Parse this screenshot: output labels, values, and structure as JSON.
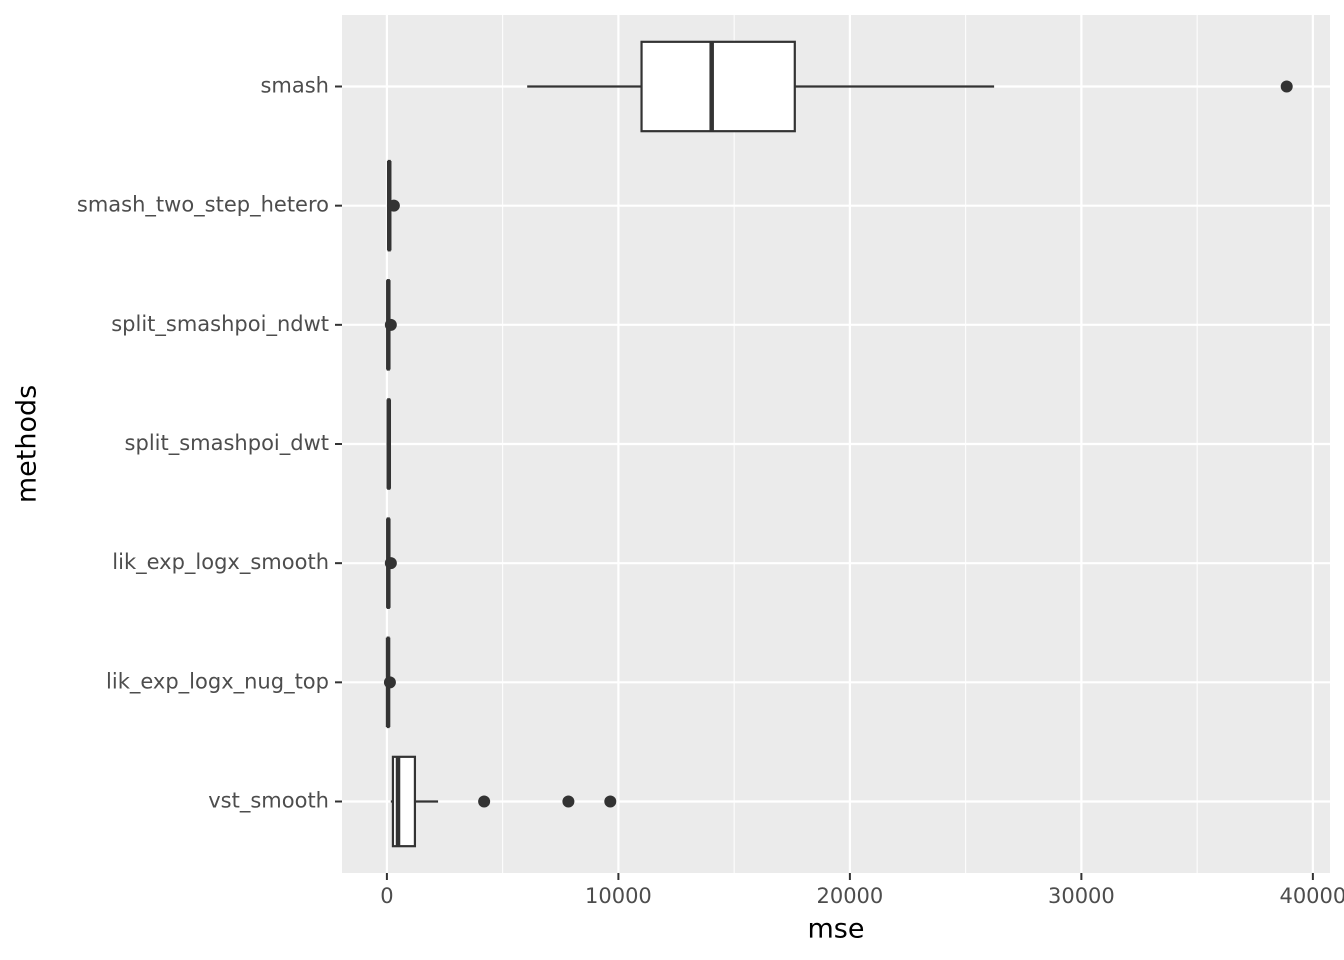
{
  "chart_data": {
    "type": "boxplot",
    "orientation": "horizontal",
    "x_label": "mse",
    "y_label": "methods",
    "categories": [
      "smash",
      "smash_two_step_hetero",
      "split_smashpoi_ndwt",
      "split_smashpoi_dwt",
      "lik_exp_logx_smooth",
      "lik_exp_logx_nug_top",
      "vst_smooth"
    ],
    "boxes": [
      {
        "min": 6060,
        "q1": 11000,
        "median": 14030,
        "q3": 17620,
        "max": 26230,
        "outliers": [
          38870
        ]
      },
      {
        "min": 50,
        "q1": 80,
        "median": 100,
        "q3": 120,
        "max": 150,
        "outliers": [
          300
        ]
      },
      {
        "min": 20,
        "q1": 40,
        "median": 60,
        "q3": 80,
        "max": 110,
        "outliers": [
          170
        ]
      },
      {
        "min": 30,
        "q1": 60,
        "median": 80,
        "q3": 100,
        "max": 130,
        "outliers": []
      },
      {
        "min": 20,
        "q1": 40,
        "median": 60,
        "q3": 80,
        "max": 110,
        "outliers": [
          170
        ]
      },
      {
        "min": 20,
        "q1": 40,
        "median": 50,
        "q3": 70,
        "max": 100,
        "outliers": [
          130
        ]
      },
      {
        "min": 170,
        "q1": 260,
        "median": 480,
        "q3": 1210,
        "max": 2210,
        "outliers": [
          4200,
          7840,
          9650
        ]
      }
    ],
    "color": "#333333",
    "fill": "#ffffff",
    "background": "#ebebeb",
    "xlim": [
      -1940,
      40740
    ],
    "xticks": [
      0,
      10000,
      20000,
      30000,
      40000
    ],
    "xminorticks": [
      5000,
      15000,
      25000,
      35000
    ],
    "grid": true
  }
}
